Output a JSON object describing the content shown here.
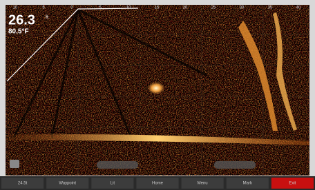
{
  "screen": {
    "depth": "26.3",
    "depth_unit": "ft",
    "temperature": "80.5°F",
    "range_labels": [
      "10",
      "5",
      "0",
      "5",
      "10",
      "15",
      "20",
      "25",
      "30",
      "35",
      "40"
    ]
  },
  "softkeys": [
    "24.5t",
    "Waypoint",
    "Lit",
    "Home",
    "Menu",
    "Mark",
    "Exit"
  ]
}
